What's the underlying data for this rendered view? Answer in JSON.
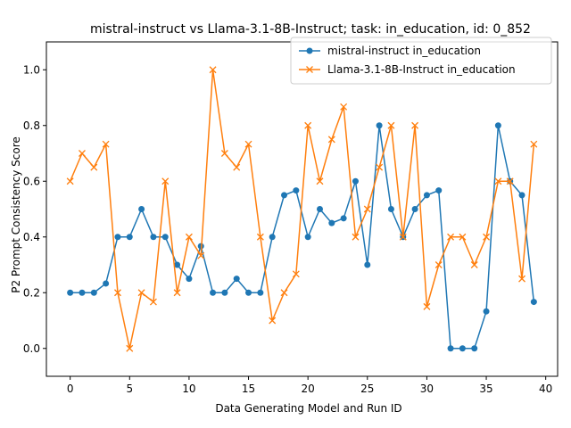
{
  "chart_data": {
    "type": "line",
    "title": "mistral-instruct vs Llama-3.1-8B-Instruct; task: in_education, id: 0_852",
    "xlabel": "Data Generating Model and Run ID",
    "ylabel": "P2 Prompt Consistency Score",
    "xlim": [
      -2,
      41
    ],
    "ylim": [
      -0.1,
      1.1
    ],
    "xticks": [
      0,
      5,
      10,
      15,
      20,
      25,
      30,
      35,
      40
    ],
    "yticks": [
      0.0,
      0.2,
      0.4,
      0.6,
      0.8,
      1.0
    ],
    "xtick_labels": [
      "0",
      "5",
      "10",
      "15",
      "20",
      "25",
      "30",
      "35",
      "40"
    ],
    "ytick_labels": [
      "0.0",
      "0.2",
      "0.4",
      "0.6",
      "0.8",
      "1.0"
    ],
    "grid": false,
    "legend_position": "upper right",
    "x": [
      0,
      1,
      2,
      3,
      4,
      5,
      6,
      7,
      8,
      9,
      10,
      11,
      12,
      13,
      14,
      15,
      16,
      17,
      18,
      19,
      20,
      21,
      22,
      23,
      24,
      25,
      26,
      27,
      28,
      29,
      30,
      31,
      32,
      33,
      34,
      35,
      36,
      37,
      38,
      39
    ],
    "series": [
      {
        "name": "mistral-instruct in_education",
        "color": "#1f77b4",
        "marker": "circle",
        "values": [
          0.2,
          0.2,
          0.2,
          0.233,
          0.4,
          0.4,
          0.5,
          0.4,
          0.4,
          0.3,
          0.25,
          0.367,
          0.2,
          0.2,
          0.25,
          0.2,
          0.2,
          0.4,
          0.55,
          0.567,
          0.4,
          0.5,
          0.45,
          0.467,
          0.6,
          0.3,
          0.8,
          0.5,
          0.4,
          0.5,
          0.55,
          0.567,
          0.0,
          0.0,
          0.0,
          0.133,
          0.8,
          0.6,
          0.55,
          0.167
        ]
      },
      {
        "name": "Llama-3.1-8B-Instruct in_education",
        "color": "#ff7f0e",
        "marker": "x",
        "values": [
          0.6,
          0.7,
          0.65,
          0.733,
          0.2,
          0.0,
          0.2,
          0.167,
          0.6,
          0.2,
          0.4,
          0.333,
          1.0,
          0.7,
          0.65,
          0.733,
          0.4,
          0.1,
          0.2,
          0.267,
          0.8,
          0.6,
          0.75,
          0.867,
          0.4,
          0.5,
          0.65,
          0.8,
          0.4,
          0.8,
          0.15,
          0.3,
          0.4,
          0.4,
          0.3,
          0.4,
          0.6,
          0.6,
          0.25,
          0.733
        ]
      }
    ]
  }
}
